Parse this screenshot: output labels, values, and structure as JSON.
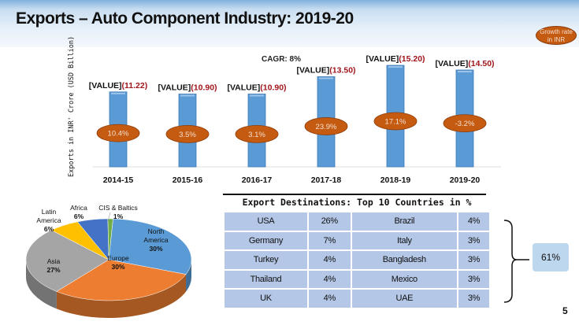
{
  "slide": {
    "title": "Exports – Auto Component Industry: 2019-20",
    "growth_legend": "Growth rate in INR",
    "page_number": "5"
  },
  "colors": {
    "bar": "#5b9bd5",
    "growth_bubble": "#c55a11",
    "value_red": "#a0161b",
    "table_cell": "#b4c7e7"
  },
  "chart_data": [
    {
      "type": "bar",
      "title": "",
      "annotation": "CAGR: 8%",
      "ylabel": "Exports in INR' Crore (USD Billion)",
      "categories": [
        "2014-15",
        "2015-16",
        "2016-17",
        "2017-18",
        "2018-19",
        "2019-20"
      ],
      "values": [
        11.22,
        10.9,
        10.9,
        13.5,
        15.2,
        14.5
      ],
      "value_labels": [
        "[VALUE] (11.22)",
        "[VALUE] (10.90)",
        "[VALUE] (10.90)",
        "[VALUE] (13.50)",
        "[VALUE] (15.20)",
        "[VALUE] (14.50)"
      ],
      "value_prefix": "[VALUE]",
      "value_suffix": [
        "(11.22)",
        "(10.90)",
        "(10.90)",
        "(13.50)",
        "(15.20)",
        "(14.50)"
      ],
      "growth_rates": [
        "10.4%",
        "3.5%",
        "3.1%",
        "23.9%",
        "17.1%",
        "-3.2%"
      ],
      "ylim": [
        0,
        16.5
      ],
      "grid": false
    },
    {
      "type": "pie",
      "slices": [
        {
          "label": "North America",
          "value": 30,
          "text": "30%",
          "color": "#5b9bd5"
        },
        {
          "label": "Europe",
          "value": 30,
          "text": "30%",
          "color": "#ed7d31"
        },
        {
          "label": "Asia",
          "value": 27,
          "text": "27%",
          "color": "#a5a5a5"
        },
        {
          "label": "Latin America",
          "value": 6,
          "text": "6%",
          "color": "#ffc000"
        },
        {
          "label": "Africa",
          "value": 6,
          "text": "6%",
          "color": "#4472c4"
        },
        {
          "label": "CIS & Baltics",
          "value": 1,
          "text": "1%",
          "color": "#70ad47"
        }
      ]
    }
  ],
  "table": {
    "title": "Export Destinations: Top 10 Countries in %",
    "rows": [
      [
        "USA",
        "26%",
        "Brazil",
        "4%"
      ],
      [
        "Germany",
        "7%",
        "Italy",
        "3%"
      ],
      [
        "Turkey",
        "4%",
        "Bangladesh",
        "3%"
      ],
      [
        "Thailand",
        "4%",
        "Mexico",
        "3%"
      ],
      [
        "UK",
        "4%",
        "UAE",
        "3%"
      ]
    ],
    "total": "61%"
  }
}
